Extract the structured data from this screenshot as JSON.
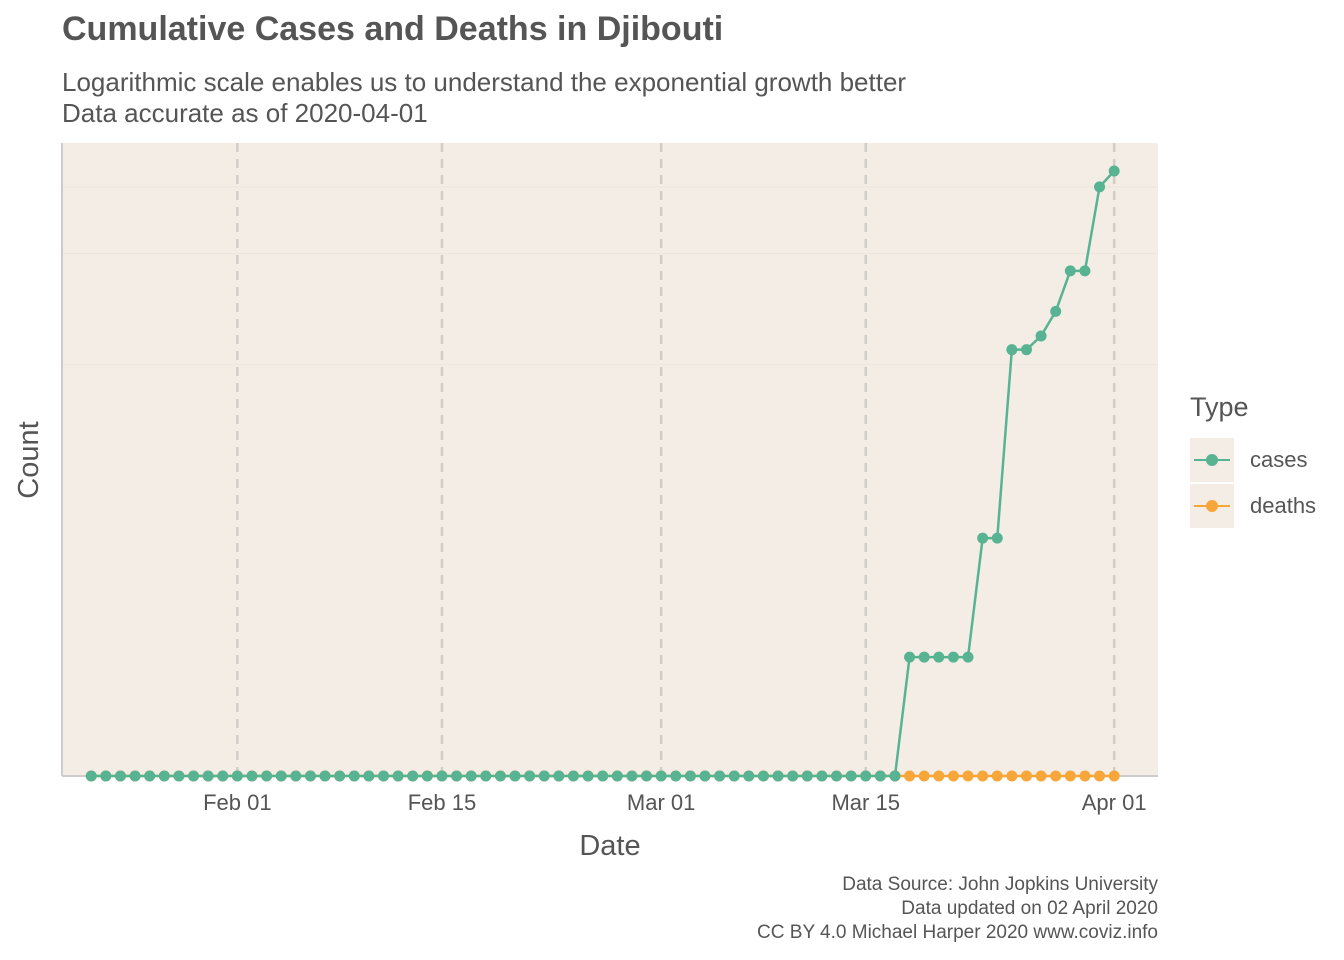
{
  "title": "Cumulative Cases and Deaths in Djibouti",
  "subtitle_line1": "Logarithmic scale enables us to understand the exponential growth better",
  "subtitle_line2": "Data accurate as of 2020-04-01",
  "caption": [
    "Data Source: John Jopkins University",
    "Data updated on 02 April 2020",
    "CC BY 4.0 Michael Harper 2020 www.coviz.info"
  ],
  "colors": {
    "cases": "#58b392",
    "deaths": "#f7a63a",
    "panel": "#f3ede6"
  },
  "chart_data": {
    "type": "line",
    "title": "Cumulative Cases and Deaths in Djibouti",
    "xlabel": "Date",
    "ylabel": "Count",
    "y_scale": "log",
    "y_tick_labels_shown": false,
    "x_ticks": [
      "2020-02-01",
      "2020-02-15",
      "2020-03-01",
      "2020-03-15",
      "2020-04-01"
    ],
    "x_tick_labels": [
      "Feb 01",
      "Feb 15",
      "Mar 01",
      "Mar 15",
      "Apr 01"
    ],
    "xlim": [
      "2020-01-20",
      "2020-04-04"
    ],
    "grid": "vertical dashed major lines, faint horizontal lines",
    "legend": {
      "title": "Type",
      "position": "right",
      "entries": [
        "cases",
        "deaths"
      ]
    },
    "series": [
      {
        "name": "cases",
        "dates": [
          "2020-01-22",
          "2020-01-23",
          "2020-01-24",
          "2020-01-25",
          "2020-01-26",
          "2020-01-27",
          "2020-01-28",
          "2020-01-29",
          "2020-01-30",
          "2020-01-31",
          "2020-02-01",
          "2020-02-02",
          "2020-02-03",
          "2020-02-04",
          "2020-02-05",
          "2020-02-06",
          "2020-02-07",
          "2020-02-08",
          "2020-02-09",
          "2020-02-10",
          "2020-02-11",
          "2020-02-12",
          "2020-02-13",
          "2020-02-14",
          "2020-02-15",
          "2020-02-16",
          "2020-02-17",
          "2020-02-18",
          "2020-02-19",
          "2020-02-20",
          "2020-02-21",
          "2020-02-22",
          "2020-02-23",
          "2020-02-24",
          "2020-02-25",
          "2020-02-26",
          "2020-02-27",
          "2020-02-28",
          "2020-02-29",
          "2020-03-01",
          "2020-03-02",
          "2020-03-03",
          "2020-03-04",
          "2020-03-05",
          "2020-03-06",
          "2020-03-07",
          "2020-03-08",
          "2020-03-09",
          "2020-03-10",
          "2020-03-11",
          "2020-03-12",
          "2020-03-13",
          "2020-03-14",
          "2020-03-15",
          "2020-03-16",
          "2020-03-17",
          "2020-03-18",
          "2020-03-19",
          "2020-03-20",
          "2020-03-21",
          "2020-03-22",
          "2020-03-23",
          "2020-03-24",
          "2020-03-25",
          "2020-03-26",
          "2020-03-27",
          "2020-03-28",
          "2020-03-29",
          "2020-03-30",
          "2020-03-31",
          "2020-04-01"
        ],
        "values": [
          0,
          0,
          0,
          0,
          0,
          0,
          0,
          0,
          0,
          0,
          0,
          0,
          0,
          0,
          0,
          0,
          0,
          0,
          0,
          0,
          0,
          0,
          0,
          0,
          0,
          0,
          0,
          0,
          0,
          0,
          0,
          0,
          0,
          0,
          0,
          0,
          0,
          0,
          0,
          0,
          0,
          0,
          0,
          0,
          0,
          0,
          0,
          0,
          0,
          0,
          0,
          0,
          0,
          0,
          0,
          0,
          1,
          1,
          1,
          1,
          1,
          3,
          3,
          11,
          11,
          12,
          14,
          18,
          18,
          30,
          33
        ]
      },
      {
        "name": "deaths",
        "dates": [
          "2020-01-22",
          "2020-01-23",
          "2020-01-24",
          "2020-01-25",
          "2020-01-26",
          "2020-01-27",
          "2020-01-28",
          "2020-01-29",
          "2020-01-30",
          "2020-01-31",
          "2020-02-01",
          "2020-02-02",
          "2020-02-03",
          "2020-02-04",
          "2020-02-05",
          "2020-02-06",
          "2020-02-07",
          "2020-02-08",
          "2020-02-09",
          "2020-02-10",
          "2020-02-11",
          "2020-02-12",
          "2020-02-13",
          "2020-02-14",
          "2020-02-15",
          "2020-02-16",
          "2020-02-17",
          "2020-02-18",
          "2020-02-19",
          "2020-02-20",
          "2020-02-21",
          "2020-02-22",
          "2020-02-23",
          "2020-02-24",
          "2020-02-25",
          "2020-02-26",
          "2020-02-27",
          "2020-02-28",
          "2020-02-29",
          "2020-03-01",
          "2020-03-02",
          "2020-03-03",
          "2020-03-04",
          "2020-03-05",
          "2020-03-06",
          "2020-03-07",
          "2020-03-08",
          "2020-03-09",
          "2020-03-10",
          "2020-03-11",
          "2020-03-12",
          "2020-03-13",
          "2020-03-14",
          "2020-03-15",
          "2020-03-16",
          "2020-03-17",
          "2020-03-18",
          "2020-03-19",
          "2020-03-20",
          "2020-03-21",
          "2020-03-22",
          "2020-03-23",
          "2020-03-24",
          "2020-03-25",
          "2020-03-26",
          "2020-03-27",
          "2020-03-28",
          "2020-03-29",
          "2020-03-30",
          "2020-03-31",
          "2020-04-01"
        ],
        "values": [
          0,
          0,
          0,
          0,
          0,
          0,
          0,
          0,
          0,
          0,
          0,
          0,
          0,
          0,
          0,
          0,
          0,
          0,
          0,
          0,
          0,
          0,
          0,
          0,
          0,
          0,
          0,
          0,
          0,
          0,
          0,
          0,
          0,
          0,
          0,
          0,
          0,
          0,
          0,
          0,
          0,
          0,
          0,
          0,
          0,
          0,
          0,
          0,
          0,
          0,
          0,
          0,
          0,
          0,
          0,
          0,
          0,
          0,
          0,
          0,
          0,
          0,
          0,
          0,
          0,
          0,
          0,
          0,
          0,
          0,
          0
        ]
      }
    ]
  }
}
